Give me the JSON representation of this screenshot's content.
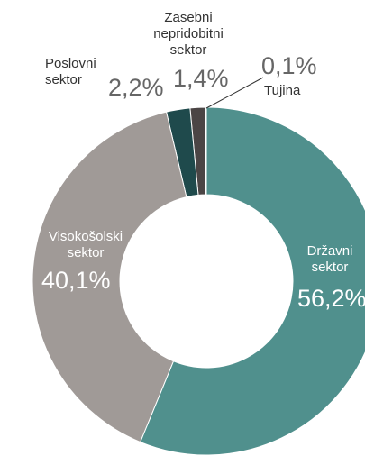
{
  "chart_data": {
    "type": "donut",
    "categories": [
      "Državni sektor",
      "Visokošolski sektor",
      "Poslovni sektor",
      "Zasebni nepridobitni sektor",
      "Tujina"
    ],
    "values": [
      56.2,
      40.1,
      2.2,
      1.4,
      0.1
    ],
    "value_labels": [
      "56,2%",
      "40,1%",
      "2,2%",
      "1,4%",
      "0,1%"
    ],
    "colors": [
      "#50908d",
      "#a09a97",
      "#1f4a4c",
      "#4b4545",
      "#c9c9c9"
    ]
  }
}
